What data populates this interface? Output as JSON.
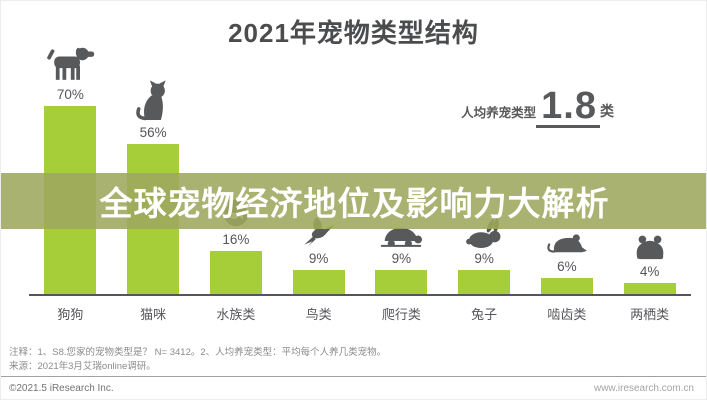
{
  "title": "2021年宠物类型结构",
  "stat": {
    "label": "人均养宠类型",
    "value": "1.8",
    "unit": "类"
  },
  "banner": {
    "text": "全球宠物经济地位及影响力大解析",
    "background": "#9ea75e",
    "text_color": "#ffffff"
  },
  "chart_data": {
    "type": "bar",
    "title": "2021年宠物类型结构",
    "categories": [
      "狗狗",
      "猫咪",
      "水族类",
      "鸟类",
      "爬行类",
      "兔子",
      "啮齿类",
      "两栖类"
    ],
    "values": [
      70,
      56,
      16,
      9,
      9,
      9,
      6,
      4
    ],
    "value_labels": [
      "70%",
      "56%",
      "16%",
      "9%",
      "9%",
      "9%",
      "6%",
      "4%"
    ],
    "unit": "%",
    "ylim": [
      0,
      75
    ],
    "grid": false,
    "legend": null,
    "bar_color": "#a6ce39",
    "icon_color": "#58595b",
    "icons": [
      "dog-icon",
      "cat-icon",
      "fishbowl-icon",
      "bird-icon",
      "turtle-icon",
      "rabbit-icon",
      "mouse-icon",
      "frog-icon"
    ],
    "annotation": "人均养宠类型 1.8 类"
  },
  "notes": {
    "line1": "注释：1、S8.您家的宠物类型是？ N= 3412。2、人均养宠类型：平均每个人养几类宠物。",
    "line2": "来源：2021年3月艾瑞online调研。"
  },
  "footer": {
    "left": "©2021.5 iResearch Inc.",
    "right": "www.iresearch.com.cn"
  },
  "colors": {
    "bar": "#a6ce39",
    "icon": "#58595b",
    "title_text": "#4b4c4e",
    "axis": "#55565a"
  }
}
